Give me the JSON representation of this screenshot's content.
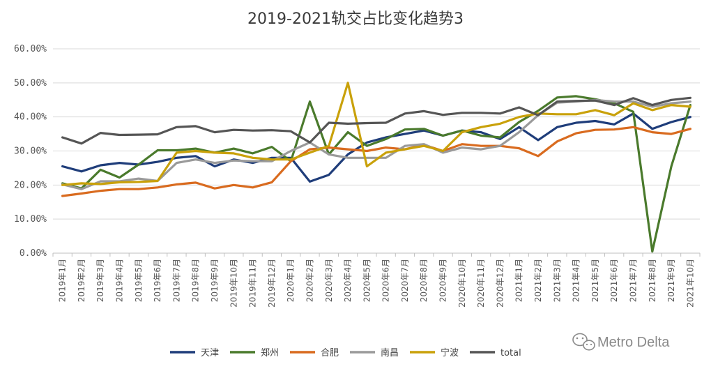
{
  "chart_data": {
    "type": "line",
    "title": "2019-2021轨交占比变化趋势3",
    "xlabel": "",
    "ylabel": "",
    "ylim": [
      0,
      60
    ],
    "yticks": [
      "0.00%",
      "10.00%",
      "20.00%",
      "30.00%",
      "40.00%",
      "50.00%",
      "60.00%"
    ],
    "ytick_values": [
      0,
      10,
      20,
      30,
      40,
      50,
      60
    ],
    "grid": true,
    "legend_position": "bottom",
    "categories": [
      "2019年1月",
      "2019年2月",
      "2019年3月",
      "2019年4月",
      "2019年5月",
      "2019年6月",
      "2019年7月",
      "2019年8月",
      "2019年9月",
      "2019年10月",
      "2019年11月",
      "2019年12月",
      "2020年1月",
      "2020年2月",
      "2020年3月",
      "2020年4月",
      "2020年5月",
      "2020年6月",
      "2020年7月",
      "2020年8月",
      "2020年9月",
      "2020年10月",
      "2020年11月",
      "2020年12月",
      "2021年1月",
      "2021年2月",
      "2021年3月",
      "2021年4月",
      "2021年5月",
      "2021年6月",
      "2021年7月",
      "2021年8月",
      "2021年9月",
      "2021年10月"
    ],
    "series": [
      {
        "name": "天津",
        "color": "#1f3d7a",
        "values": [
          25.5,
          24.0,
          25.8,
          26.5,
          26.0,
          26.8,
          28.0,
          28.5,
          25.5,
          27.5,
          26.5,
          28.0,
          28.0,
          21.0,
          23.0,
          29.0,
          32.5,
          34.0,
          35.0,
          36.0,
          34.5,
          36.0,
          35.5,
          33.5,
          37.0,
          33.2,
          37.0,
          38.3,
          38.8,
          37.8,
          41.0,
          36.5,
          38.5,
          40.0
        ]
      },
      {
        "name": "郑州",
        "color": "#4a7a2c",
        "values": [
          20.5,
          19.0,
          24.5,
          22.2,
          26.0,
          30.2,
          30.2,
          30.7,
          29.5,
          30.7,
          29.3,
          31.2,
          27.0,
          44.5,
          29.0,
          35.5,
          31.5,
          33.5,
          36.3,
          36.5,
          34.5,
          36.0,
          34.5,
          34.0,
          38.5,
          41.8,
          45.7,
          46.1,
          45.2,
          44.0,
          41.5,
          0.5,
          25.5,
          43.5
        ]
      },
      {
        "name": "合肥",
        "color": "#d96b1f",
        "values": [
          16.8,
          17.5,
          18.3,
          18.8,
          18.8,
          19.3,
          20.2,
          20.7,
          19.0,
          20.0,
          19.3,
          20.8,
          27.0,
          30.5,
          31.0,
          30.5,
          30.0,
          31.0,
          30.5,
          31.8,
          30.0,
          32.0,
          31.5,
          31.5,
          30.8,
          28.5,
          32.8,
          35.2,
          36.2,
          36.3,
          37.0,
          35.5,
          35.0,
          36.5
        ]
      },
      {
        "name": "南昌",
        "color": "#9a9a9a",
        "values": [
          20.2,
          18.8,
          21.1,
          21.1,
          21.9,
          21.2,
          26.5,
          27.5,
          26.5,
          27.2,
          27.0,
          27.0,
          30.0,
          32.5,
          29.0,
          28.0,
          28.0,
          28.0,
          31.5,
          32.0,
          29.5,
          31.0,
          30.5,
          31.5,
          35.5,
          40.5,
          44.2,
          44.5,
          45.0,
          44.5,
          44.5,
          43.0,
          44.0,
          44.5
        ]
      },
      {
        "name": "宁波",
        "color": "#c9a10a",
        "values": [
          20.0,
          20.5,
          20.3,
          20.8,
          20.9,
          21.2,
          29.5,
          30.0,
          29.5,
          29.3,
          28.0,
          27.5,
          27.5,
          29.5,
          31.5,
          50.0,
          25.5,
          29.5,
          30.5,
          31.5,
          30.0,
          35.5,
          37.0,
          38.0,
          40.0,
          41.0,
          40.8,
          40.8,
          42.0,
          40.5,
          44.0,
          42.0,
          43.5,
          43.0
        ]
      },
      {
        "name": "total",
        "color": "#555555",
        "values": [
          34.0,
          32.2,
          35.3,
          34.7,
          34.8,
          34.9,
          37.0,
          37.3,
          35.5,
          36.2,
          36.0,
          36.1,
          35.8,
          32.5,
          38.3,
          38.0,
          38.2,
          38.3,
          41.0,
          41.7,
          40.6,
          41.2,
          41.2,
          41.0,
          42.8,
          40.5,
          44.5,
          44.7,
          44.8,
          43.5,
          45.5,
          43.5,
          45.0,
          45.6
        ]
      }
    ]
  },
  "watermark": {
    "text": "Metro Delta",
    "icon": "wechat-icon"
  }
}
